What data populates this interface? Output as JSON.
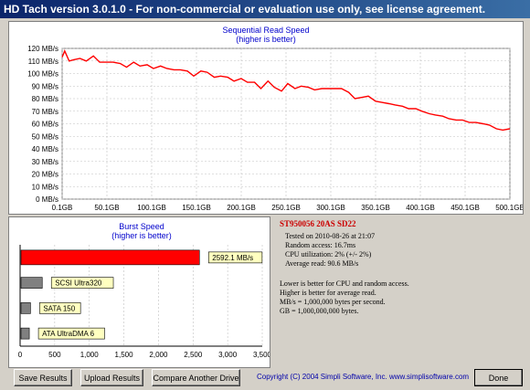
{
  "window": {
    "title": "HD Tach version 3.0.1.0  - For non-commercial or evaluation use only, see license agreement."
  },
  "read_chart": {
    "chart_data": {
      "type": "line",
      "title": "Sequential Read Speed",
      "subtitle": "(higher is better)",
      "xlabel": "",
      "ylabel": "",
      "x_unit": "GB",
      "xlim": [
        0.1,
        500
      ],
      "ylim": [
        0,
        120
      ],
      "x_ticks": [
        "0.1GB",
        "50.1GB",
        "100.1GB",
        "150.1GB",
        "200.1GB",
        "250.1GB",
        "300.1GB",
        "350.1GB",
        "400.1GB",
        "450.1GB",
        "500.1GB"
      ],
      "y_ticks": [
        "0 MB/s",
        "10 MB/s",
        "20 MB/s",
        "30 MB/s",
        "40 MB/s",
        "50 MB/s",
        "60 MB/s",
        "70 MB/s",
        "80 MB/s",
        "90 MB/s",
        "100 MB/s",
        "110 MB/s",
        "120 MB/s"
      ],
      "grid": true,
      "series": [
        {
          "color": "#ff0000",
          "x": [
            0.1,
            3,
            8,
            13,
            20,
            27,
            35,
            42,
            50,
            57,
            65,
            72,
            80,
            87,
            95,
            102,
            110,
            117,
            125,
            132,
            140,
            147,
            155,
            162,
            170,
            177,
            185,
            192,
            200,
            207,
            215,
            222,
            230,
            237,
            245,
            252,
            260,
            267,
            275,
            282,
            290,
            297,
            305,
            312,
            320,
            327,
            335,
            342,
            350,
            357,
            365,
            372,
            380,
            387,
            395,
            402,
            410,
            417,
            425,
            432,
            440,
            447,
            455,
            462,
            470,
            477,
            485,
            492,
            500
          ],
          "y": [
            113,
            118,
            110,
            111,
            112,
            110,
            114,
            109,
            109,
            109,
            108,
            105,
            109,
            106,
            107,
            104,
            106,
            104,
            103,
            103,
            102,
            98,
            102,
            101,
            97,
            98,
            97,
            94,
            96,
            93,
            93,
            88,
            94,
            89,
            86,
            92,
            88,
            90,
            89,
            87,
            88,
            88,
            88,
            88,
            85,
            80,
            81,
            82,
            78,
            77,
            76,
            75,
            74,
            72,
            72,
            70,
            68,
            67,
            66,
            64,
            63,
            63,
            61,
            61,
            60,
            59,
            56,
            55,
            56
          ]
        }
      ]
    }
  },
  "burst_chart": {
    "chart_data": {
      "type": "bar",
      "title": "Burst Speed",
      "subtitle": "(higher is better)",
      "xlim": [
        0,
        3500
      ],
      "x_ticks": [
        "0",
        "500",
        "1,000",
        "1,500",
        "2,000",
        "2,500",
        "3,000",
        "3,500"
      ],
      "bars": [
        {
          "label": "2592.1 MB/s",
          "value": 2592.1,
          "color": "#ff0000"
        },
        {
          "label": "SCSI Ultra320",
          "value": 320,
          "color": "#808080"
        },
        {
          "label": "SATA 150",
          "value": 150,
          "color": "#808080"
        },
        {
          "label": "ATA UltraDMA 6",
          "value": 133,
          "color": "#808080"
        }
      ]
    }
  },
  "info": {
    "drive": "ST950056 20AS SD22",
    "tested": "Tested on 2010-08-26 at 21:07",
    "random_access": "Random access: 16.7ms",
    "cpu": "CPU utilization: 2% (+/- 2%)",
    "average": "Average read: 90.6 MB/s",
    "note1": "Lower is better for CPU and random access.",
    "note2": "Higher is better for average read.",
    "note3": "MB/s = 1,000,000 bytes per second.",
    "note4": "GB = 1,000,000,000 bytes."
  },
  "buttons": {
    "save": "Save Results",
    "upload": "Upload Results",
    "compare": "Compare Another Drive",
    "done": "Done"
  },
  "copyright": "Copyright (C) 2004 Simpli Software, Inc. www.simplisoftware.com"
}
